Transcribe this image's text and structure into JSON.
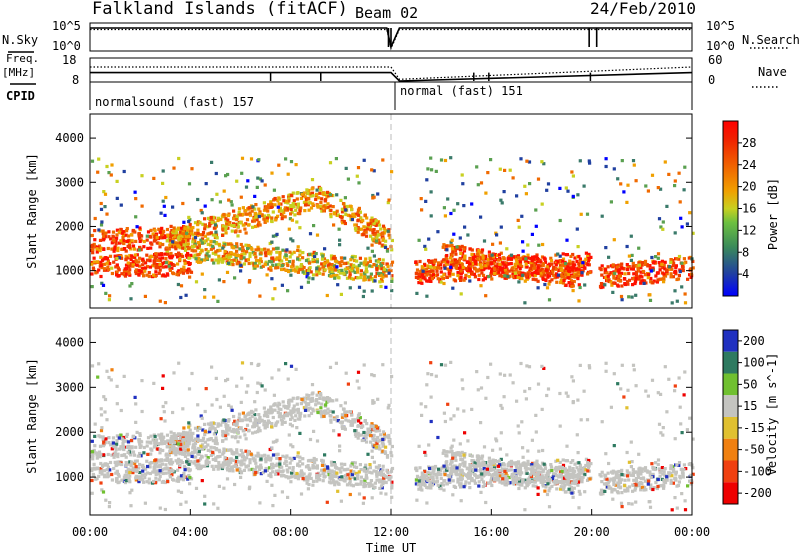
{
  "header": {
    "site": "Falkland Islands (fitACF)",
    "beam": "Beam 02",
    "date": "24/Feb/2010"
  },
  "side_labels": {
    "nsky": "N.Sky",
    "freq": "Freq.",
    "mhz": "[MHz]",
    "cpid": "CPID",
    "nsearch": "N.Search",
    "nave": "Nave"
  },
  "cpid_segments": [
    {
      "label": "normalsound (fast) 157",
      "start": "00:00",
      "end": "12:00"
    },
    {
      "label": "normal (fast) 151",
      "start": "12:00",
      "end": "24:00"
    }
  ],
  "chart_data": [
    {
      "type": "line",
      "panel": "noise",
      "left_axis": {
        "label": "N.Sky",
        "ticks": [
          "10^5",
          "10^0"
        ]
      },
      "right_axis": {
        "label": "N.Search",
        "ticks": [
          "10^5",
          "10^0"
        ]
      },
      "x": [
        "00:00",
        "11:50",
        "12:00",
        "12:20",
        "19:55",
        "20:15",
        "24:00"
      ],
      "series": [
        {
          "name": "N.Sky",
          "style": "solid",
          "values": [
            "10^5",
            "10^5",
            "10^0",
            "10^5",
            "10^5",
            "10^5",
            "10^5"
          ]
        },
        {
          "name": "N.Search",
          "style": "dotted",
          "values": [
            "10^5",
            "10^5",
            "10^0",
            "10^5",
            "10^5",
            "10^5",
            "10^5"
          ]
        }
      ]
    },
    {
      "type": "line",
      "panel": "frequency",
      "left_axis": {
        "label": "Freq. [MHz]",
        "ticks": [
          18,
          8
        ],
        "range": [
          8,
          18
        ]
      },
      "right_axis": {
        "label": "Nave",
        "ticks": [
          60,
          0
        ],
        "range": [
          0,
          60
        ]
      },
      "series": [
        {
          "name": "Freq.",
          "style": "solid",
          "x": [
            "00:00",
            "12:00",
            "12:20",
            "24:00"
          ],
          "values": [
            12,
            12,
            8,
            12
          ]
        },
        {
          "name": "Nave",
          "style": "dotted",
          "x": [
            "00:00",
            "12:00",
            "12:20",
            "24:00"
          ],
          "values": [
            40,
            40,
            5,
            40
          ]
        }
      ]
    },
    {
      "type": "heatmap",
      "panel": "power",
      "ylabel": "Slant Range [km]",
      "ylim": [
        200,
        4500
      ],
      "yticks": [
        1000,
        2000,
        3000,
        4000
      ],
      "xlim": [
        "00:00",
        "24:00"
      ],
      "colorbar": {
        "label": "Power [dB]",
        "range": [
          0,
          32
        ],
        "ticks": [
          4,
          8,
          12,
          16,
          20,
          24,
          28
        ]
      },
      "data_gaps": [
        [
          "12:00",
          "12:55"
        ],
        [
          "19:55",
          "20:15"
        ]
      ],
      "bands": [
        {
          "from": "00:00",
          "to": "04:00",
          "range_center_start": 1700,
          "range_center_end": 1800,
          "power": 26
        },
        {
          "from": "03:00",
          "to": "09:00",
          "range_center_start": 1700,
          "range_center_end": 2700,
          "power": 22
        },
        {
          "from": "09:00",
          "to": "12:00",
          "range_center_start": 2700,
          "range_center_end": 1700,
          "power": 22
        },
        {
          "from": "00:00",
          "to": "04:00",
          "range_center_start": 1100,
          "range_center_end": 1200,
          "power": 27
        },
        {
          "from": "04:00",
          "to": "12:00",
          "range_center_start": 1500,
          "range_center_end": 1000,
          "power": 20
        },
        {
          "from": "12:55",
          "to": "19:55",
          "range_center_start": 1000,
          "range_center_end": 1200,
          "power": 27
        },
        {
          "from": "14:00",
          "to": "19:30",
          "range_center_start": 1400,
          "range_center_end": 900,
          "power": 26
        },
        {
          "from": "20:15",
          "to": "24:00",
          "range_center_start": 900,
          "range_center_end": 1100,
          "power": 27
        }
      ]
    },
    {
      "type": "heatmap",
      "panel": "velocity",
      "ylabel": "Slant Range [km]",
      "ylim": [
        200,
        4500
      ],
      "yticks": [
        1000,
        2000,
        3000,
        4000
      ],
      "xlabel": "Time UT",
      "xticks": [
        "00:00",
        "04:00",
        "08:00",
        "12:00",
        "16:00",
        "20:00",
        "00:00"
      ],
      "xlim": [
        "00:00",
        "24:00"
      ],
      "colorbar": {
        "label": "Velocity [m s^-1]",
        "range": [
          -250,
          250
        ],
        "ticks": [
          200,
          100,
          50,
          15,
          -15,
          -50,
          -100,
          -200
        ]
      },
      "data_gaps": [
        [
          "12:00",
          "12:55"
        ],
        [
          "19:55",
          "20:15"
        ]
      ],
      "dominant_velocity": 0
    }
  ]
}
